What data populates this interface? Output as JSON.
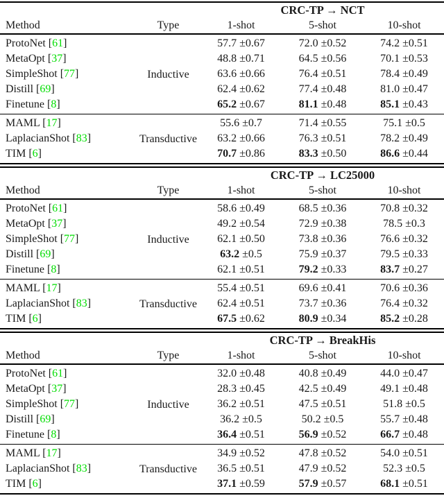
{
  "page": {
    "background": "#ffffff",
    "text_color": "#1a1a1a",
    "rule_color": "#000000",
    "citation_color": "#00dd00",
    "score_prefix": "±"
  },
  "columns": {
    "method": "Method",
    "type": "Type",
    "shots": [
      "1-shot",
      "5-shot",
      "10-shot"
    ]
  },
  "tables": [
    {
      "title": "CRC-TP → NCT",
      "groups": [
        {
          "type": "Inductive",
          "rows": [
            {
              "method": "ProtoNet",
              "cite": "61",
              "scores": [
                {
                  "v": "57.7",
                  "e": "0.67",
                  "b": false
                },
                {
                  "v": "72.0",
                  "e": "0.52",
                  "b": false
                },
                {
                  "v": "74.2",
                  "e": "0.51",
                  "b": false
                }
              ]
            },
            {
              "method": "MetaOpt",
              "cite": "37",
              "scores": [
                {
                  "v": "48.8",
                  "e": "0.71",
                  "b": false
                },
                {
                  "v": "64.5",
                  "e": "0.56",
                  "b": false
                },
                {
                  "v": "70.1",
                  "e": "0.53",
                  "b": false
                }
              ]
            },
            {
              "method": "SimpleShot",
              "cite": "77",
              "scores": [
                {
                  "v": "63.6",
                  "e": "0.66",
                  "b": false
                },
                {
                  "v": "76.4",
                  "e": "0.51",
                  "b": false
                },
                {
                  "v": "78.4",
                  "e": "0.49",
                  "b": false
                }
              ]
            },
            {
              "method": "Distill",
              "cite": "69",
              "scores": [
                {
                  "v": "62.4",
                  "e": "0.62",
                  "b": false
                },
                {
                  "v": "77.4",
                  "e": "0.48",
                  "b": false
                },
                {
                  "v": "81.0",
                  "e": "0.47",
                  "b": false
                }
              ]
            },
            {
              "method": "Finetune",
              "cite": "8",
              "scores": [
                {
                  "v": "65.2",
                  "e": "0.67",
                  "b": true
                },
                {
                  "v": "81.1",
                  "e": "0.48",
                  "b": true
                },
                {
                  "v": "85.1",
                  "e": "0.43",
                  "b": true
                }
              ]
            }
          ]
        },
        {
          "type": "Transductive",
          "rows": [
            {
              "method": "MAML",
              "cite": "17",
              "scores": [
                {
                  "v": "55.6",
                  "e": "0.7",
                  "b": false
                },
                {
                  "v": "71.4",
                  "e": "0.55",
                  "b": false
                },
                {
                  "v": "75.1",
                  "e": "0.5",
                  "b": false
                }
              ]
            },
            {
              "method": "LaplacianShot",
              "cite": "83",
              "scores": [
                {
                  "v": "63.2",
                  "e": "0.66",
                  "b": false
                },
                {
                  "v": "76.3",
                  "e": "0.51",
                  "b": false
                },
                {
                  "v": "78.2",
                  "e": "0.49",
                  "b": false
                }
              ]
            },
            {
              "method": "TIM",
              "cite": "6",
              "scores": [
                {
                  "v": "70.7",
                  "e": "0.86",
                  "b": true
                },
                {
                  "v": "83.3",
                  "e": "0.50",
                  "b": true
                },
                {
                  "v": "86.6",
                  "e": "0.44",
                  "b": true
                }
              ]
            }
          ]
        }
      ]
    },
    {
      "title": "CRC-TP → LC25000",
      "groups": [
        {
          "type": "Inductive",
          "rows": [
            {
              "method": "ProtoNet",
              "cite": "61",
              "scores": [
                {
                  "v": "58.6",
                  "e": "0.49",
                  "b": false
                },
                {
                  "v": "68.5",
                  "e": "0.36",
                  "b": false
                },
                {
                  "v": "70.8",
                  "e": "0.32",
                  "b": false
                }
              ]
            },
            {
              "method": "MetaOpt",
              "cite": "37",
              "scores": [
                {
                  "v": "49.2",
                  "e": "0.54",
                  "b": false
                },
                {
                  "v": "72.9",
                  "e": "0.38",
                  "b": false
                },
                {
                  "v": "78.5",
                  "e": "0.3",
                  "b": false
                }
              ]
            },
            {
              "method": "SimpleShot",
              "cite": "77",
              "scores": [
                {
                  "v": "62.1",
                  "e": "0.50",
                  "b": false
                },
                {
                  "v": "73.8",
                  "e": "0.36",
                  "b": false
                },
                {
                  "v": "76.6",
                  "e": "0.32",
                  "b": false
                }
              ]
            },
            {
              "method": "Distill",
              "cite": "69",
              "scores": [
                {
                  "v": "63.2",
                  "e": "0.5",
                  "b": true
                },
                {
                  "v": "75.9",
                  "e": "0.37",
                  "b": false
                },
                {
                  "v": "79.5",
                  "e": "0.33",
                  "b": false
                }
              ]
            },
            {
              "method": "Finetune",
              "cite": "8",
              "scores": [
                {
                  "v": "62.1",
                  "e": "0.51",
                  "b": false
                },
                {
                  "v": "79.2",
                  "e": "0.33",
                  "b": true
                },
                {
                  "v": "83.7",
                  "e": "0.27",
                  "b": true
                }
              ]
            }
          ]
        },
        {
          "type": "Transductive",
          "rows": [
            {
              "method": "MAML",
              "cite": "17",
              "scores": [
                {
                  "v": "55.4",
                  "e": "0.51",
                  "b": false
                },
                {
                  "v": "69.6",
                  "e": "0.41",
                  "b": false
                },
                {
                  "v": "70.6",
                  "e": "0.36",
                  "b": false
                }
              ]
            },
            {
              "method": "LaplacianShot",
              "cite": "83",
              "scores": [
                {
                  "v": "62.4",
                  "e": "0.51",
                  "b": false
                },
                {
                  "v": "73.7",
                  "e": "0.36",
                  "b": false
                },
                {
                  "v": "76.4",
                  "e": "0.32",
                  "b": false
                }
              ]
            },
            {
              "method": "TIM",
              "cite": "6",
              "scores": [
                {
                  "v": "67.5",
                  "e": "0.62",
                  "b": true
                },
                {
                  "v": "80.9",
                  "e": "0.34",
                  "b": true
                },
                {
                  "v": "85.2",
                  "e": "0.28",
                  "b": true
                }
              ]
            }
          ]
        }
      ]
    },
    {
      "title": "CRC-TP → BreakHis",
      "groups": [
        {
          "type": "Inductive",
          "rows": [
            {
              "method": "ProtoNet",
              "cite": "61",
              "scores": [
                {
                  "v": "32.0",
                  "e": "0.48",
                  "b": false
                },
                {
                  "v": "40.8",
                  "e": "0.49",
                  "b": false
                },
                {
                  "v": "44.0",
                  "e": "0.47",
                  "b": false
                }
              ]
            },
            {
              "method": "MetaOpt",
              "cite": "37",
              "scores": [
                {
                  "v": "28.3",
                  "e": "0.45",
                  "b": false
                },
                {
                  "v": "42.5",
                  "e": "0.49",
                  "b": false
                },
                {
                  "v": "49.1",
                  "e": "0.48",
                  "b": false
                }
              ]
            },
            {
              "method": "SimpleShot",
              "cite": "77",
              "scores": [
                {
                  "v": "36.2",
                  "e": "0.51",
                  "b": false
                },
                {
                  "v": "47.5",
                  "e": "0.51",
                  "b": false
                },
                {
                  "v": "51.8",
                  "e": "0.5",
                  "b": false
                }
              ]
            },
            {
              "method": "Distill",
              "cite": "69",
              "scores": [
                {
                  "v": "36.2",
                  "e": "0.5",
                  "b": false
                },
                {
                  "v": "50.2",
                  "e": "0.5",
                  "b": false
                },
                {
                  "v": "55.7",
                  "e": "0.48",
                  "b": false
                }
              ]
            },
            {
              "method": "Finetune",
              "cite": "8",
              "scores": [
                {
                  "v": "36.4",
                  "e": "0.51",
                  "b": true
                },
                {
                  "v": "56.9",
                  "e": "0.52",
                  "b": true
                },
                {
                  "v": "66.7",
                  "e": "0.48",
                  "b": true
                }
              ]
            }
          ]
        },
        {
          "type": "Transductive",
          "rows": [
            {
              "method": "MAML",
              "cite": "17",
              "scores": [
                {
                  "v": "34.9",
                  "e": "0.52",
                  "b": false
                },
                {
                  "v": "47.8",
                  "e": "0.52",
                  "b": false
                },
                {
                  "v": "54.0",
                  "e": "0.51",
                  "b": false
                }
              ]
            },
            {
              "method": "LaplacianShot",
              "cite": "83",
              "scores": [
                {
                  "v": "36.5",
                  "e": "0.51",
                  "b": false
                },
                {
                  "v": "47.9",
                  "e": "0.52",
                  "b": false
                },
                {
                  "v": "52.3",
                  "e": "0.5",
                  "b": false
                }
              ]
            },
            {
              "method": "TIM",
              "cite": "6",
              "scores": [
                {
                  "v": "37.1",
                  "e": "0.59",
                  "b": true
                },
                {
                  "v": "57.9",
                  "e": "0.57",
                  "b": true
                },
                {
                  "v": "68.1",
                  "e": "0.51",
                  "b": true
                }
              ]
            }
          ]
        }
      ]
    }
  ]
}
